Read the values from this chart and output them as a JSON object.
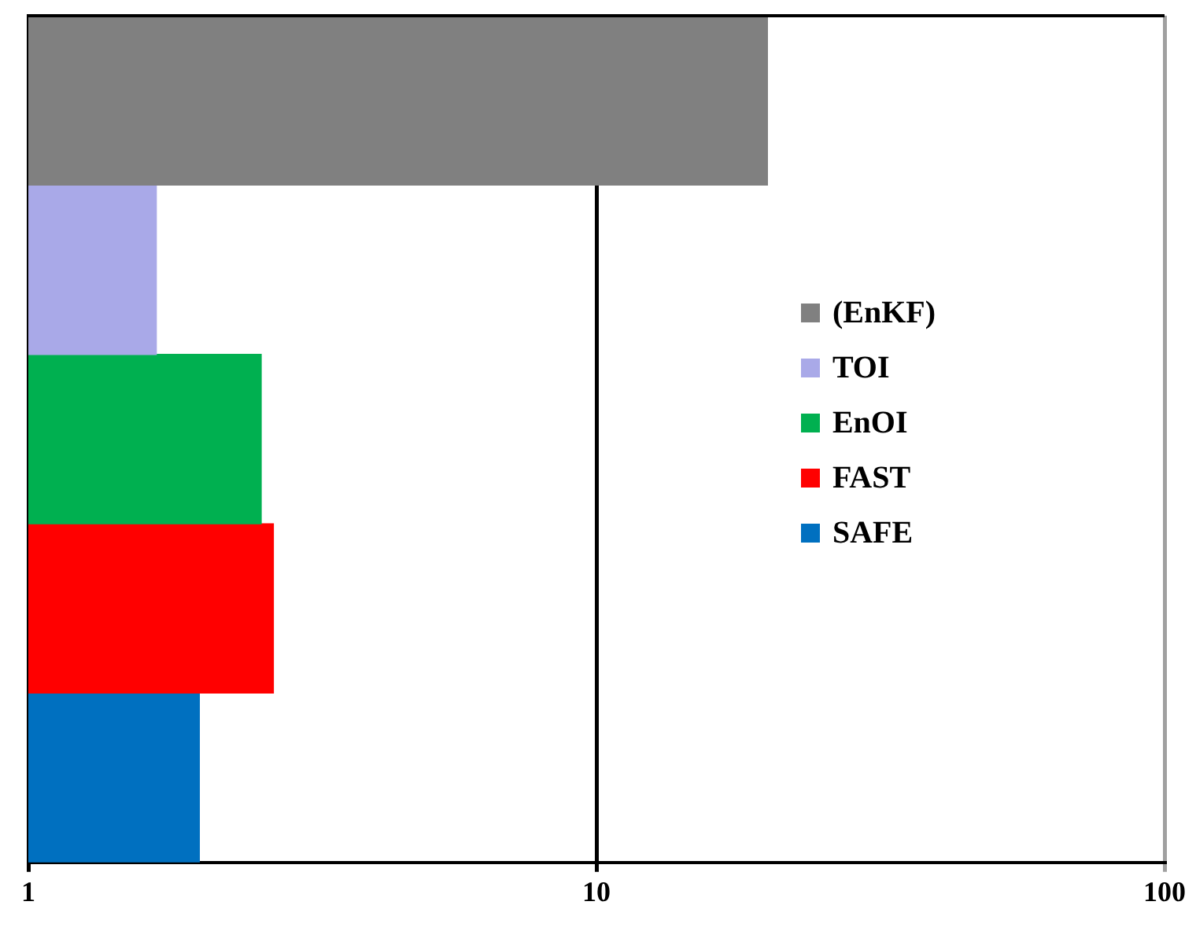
{
  "chart_data": {
    "type": "bar",
    "orientation": "horizontal",
    "categories": [
      null,
      null,
      null,
      null,
      null
    ],
    "series": [
      {
        "name": "(EnKF)",
        "color": "#808080",
        "values": [
          20,
          null,
          null,
          null,
          null
        ]
      },
      {
        "name": "TOI",
        "color": "#a9a9e8",
        "values": [
          null,
          1.68,
          null,
          null,
          null
        ]
      },
      {
        "name": "EnOI",
        "color": "#00b050",
        "values": [
          null,
          null,
          2.57,
          null,
          null
        ]
      },
      {
        "name": "FAST",
        "color": "#ff0000",
        "values": [
          null,
          null,
          null,
          2.7,
          null
        ]
      },
      {
        "name": "SAFE",
        "color": "#0070c0",
        "values": [
          null,
          null,
          null,
          null,
          2.0
        ]
      }
    ],
    "log": "x",
    "xlim": [
      1,
      100
    ],
    "xticks": [
      1,
      10,
      100
    ],
    "grid": "x",
    "legend": "right",
    "tick_labels": "x"
  }
}
